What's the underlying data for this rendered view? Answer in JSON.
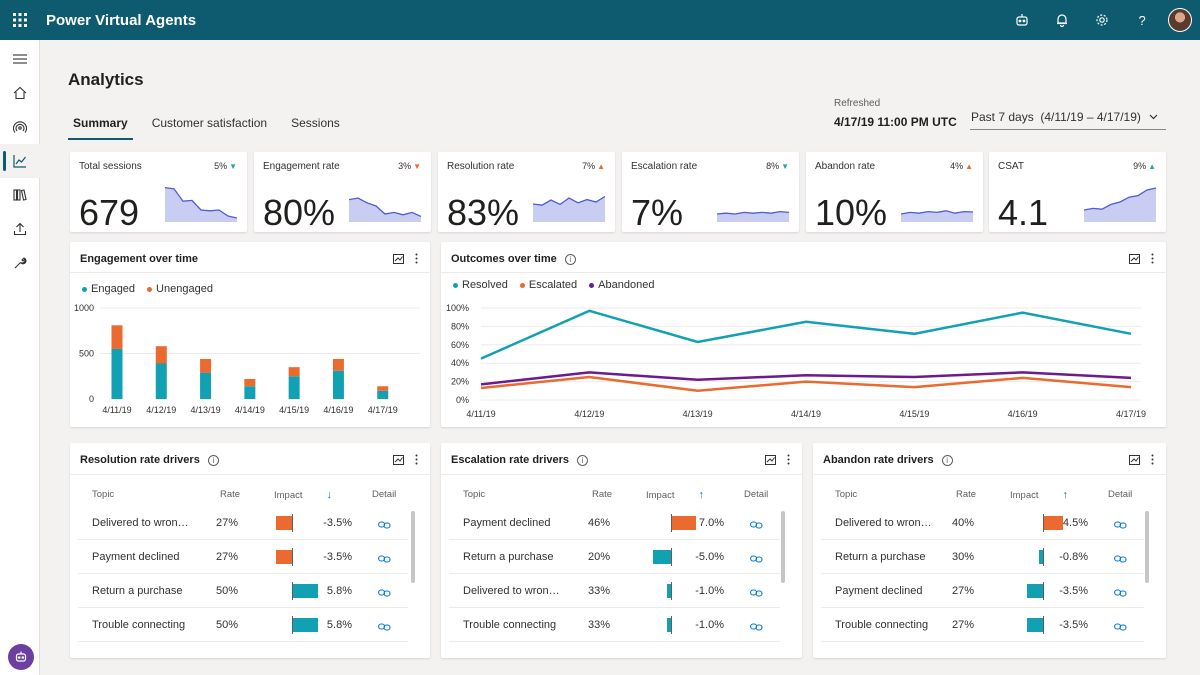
{
  "app": {
    "title": "Power Virtual Agents"
  },
  "page": {
    "title": "Analytics"
  },
  "tabs": [
    {
      "label": "Summary",
      "active": true
    },
    {
      "label": "Customer satisfaction"
    },
    {
      "label": "Sessions"
    }
  ],
  "refreshed": {
    "label": "Refreshed",
    "value": "4/17/19 11:00 PM UTC"
  },
  "date_range": {
    "label": "Past 7 days",
    "range": "(4/11/19 – 4/17/19)"
  },
  "colors": {
    "brand": "#0e5b6f",
    "teal": "#12a0b3",
    "orange": "#ea6a2f",
    "purple": "#6c1a8c",
    "spark": "#4f5bd5",
    "sparkFill": "#c9cdf2",
    "up": "#2aa5a0",
    "down_orange": "#ea6a2f"
  },
  "kpis": [
    {
      "label": "Total sessions",
      "delta": "5%",
      "dir": "down",
      "tri_color": "#2aa5a0",
      "value": "679",
      "spark": [
        0.86,
        0.83,
        0.52,
        0.54,
        0.3,
        0.28,
        0.3,
        0.15,
        0.1
      ]
    },
    {
      "label": "Engagement rate",
      "delta": "3%",
      "dir": "down",
      "tri_color": "#ea6a2f",
      "value": "80%",
      "spark": [
        0.56,
        0.6,
        0.48,
        0.4,
        0.2,
        0.24,
        0.18,
        0.24,
        0.14
      ]
    },
    {
      "label": "Resolution rate",
      "delta": "7%",
      "dir": "up",
      "tri_color": "#ea6a2f",
      "value": "83%",
      "spark": [
        0.45,
        0.42,
        0.55,
        0.44,
        0.6,
        0.48,
        0.56,
        0.5,
        0.64
      ]
    },
    {
      "label": "Escalation rate",
      "delta": "8%",
      "dir": "down",
      "tri_color": "#2aa5a0",
      "value": "7%",
      "spark": [
        0.2,
        0.22,
        0.2,
        0.24,
        0.22,
        0.24,
        0.22,
        0.26,
        0.24
      ]
    },
    {
      "label": "Abandon rate",
      "delta": "4%",
      "dir": "up",
      "tri_color": "#ea6a2f",
      "value": "10%",
      "spark": [
        0.2,
        0.24,
        0.22,
        0.26,
        0.24,
        0.28,
        0.22,
        0.26,
        0.25
      ]
    },
    {
      "label": "CSAT",
      "delta": "9%",
      "dir": "up",
      "tri_color": "#2aa5a0",
      "value": "4.1",
      "spark": [
        0.3,
        0.34,
        0.32,
        0.44,
        0.5,
        0.62,
        0.66,
        0.8,
        0.85
      ]
    }
  ],
  "engagement": {
    "title": "Engagement over time",
    "legend": [
      "Engaged",
      "Unengaged"
    ]
  },
  "outcomes": {
    "title": "Outcomes over time",
    "legend": [
      "Resolved",
      "Escalated",
      "Abandoned"
    ]
  },
  "chart_data": [
    {
      "type": "bar",
      "title": "Engagement over time",
      "categories": [
        "4/11/19",
        "4/12/19",
        "4/13/19",
        "4/14/19",
        "4/15/19",
        "4/16/19",
        "4/17/19"
      ],
      "series": [
        {
          "name": "Engaged",
          "values": [
            550,
            390,
            290,
            140,
            250,
            310,
            90
          ]
        },
        {
          "name": "Unengaged",
          "values": [
            260,
            190,
            150,
            80,
            100,
            130,
            50
          ]
        }
      ],
      "ylim": [
        0,
        1000
      ],
      "yticks": [
        "1000",
        "500",
        "0"
      ],
      "stacked": true,
      "legend": "top-left"
    },
    {
      "type": "line",
      "title": "Outcomes over time",
      "categories": [
        "4/11/19",
        "4/12/19",
        "4/13/19",
        "4/14/19",
        "4/15/19",
        "4/16/19",
        "4/17/19"
      ],
      "series": [
        {
          "name": "Resolved",
          "values": [
            45,
            97,
            63,
            85,
            72,
            95,
            72
          ]
        },
        {
          "name": "Escalated",
          "values": [
            13,
            25,
            10,
            20,
            14,
            24,
            14
          ]
        },
        {
          "name": "Abandoned",
          "values": [
            17,
            30,
            22,
            27,
            25,
            30,
            24
          ]
        }
      ],
      "ylim": [
        0,
        100
      ],
      "yticks": [
        "100%",
        "80%",
        "60%",
        "40%",
        "20%",
        "0%"
      ],
      "legend": "top-left"
    }
  ],
  "drivers_headers": {
    "topic": "Topic",
    "rate": "Rate",
    "impact": "Impact",
    "detail": "Detail"
  },
  "drivers": [
    {
      "title": "Resolution rate drivers",
      "sort": "↓",
      "rows": [
        {
          "topic": "Delivered to wron…",
          "rate": "27%",
          "impact": -3.5,
          "impact_text": "-3.5%"
        },
        {
          "topic": "Payment declined",
          "rate": "27%",
          "impact": -3.5,
          "impact_text": "-3.5%"
        },
        {
          "topic": "Return a purchase",
          "rate": "50%",
          "impact": 5.8,
          "impact_text": "5.8%"
        },
        {
          "topic": "Trouble connecting",
          "rate": "50%",
          "impact": 5.8,
          "impact_text": "5.8%"
        }
      ]
    },
    {
      "title": "Escalation rate drivers",
      "sort": "↑",
      "rows": [
        {
          "topic": "Payment declined",
          "rate": "46%",
          "impact": 7.0,
          "impact_text": "7.0%"
        },
        {
          "topic": "Return a purchase",
          "rate": "20%",
          "impact": -5.0,
          "impact_text": "-5.0%"
        },
        {
          "topic": "Delivered to wron…",
          "rate": "33%",
          "impact": -1.0,
          "impact_text": "-1.0%"
        },
        {
          "topic": "Trouble connecting",
          "rate": "33%",
          "impact": -1.0,
          "impact_text": "-1.0%"
        }
      ]
    },
    {
      "title": "Abandon rate drivers",
      "sort": "↑",
      "rows": [
        {
          "topic": "Delivered to wron…",
          "rate": "40%",
          "impact": 4.5,
          "impact_text": "4.5%"
        },
        {
          "topic": "Return a purchase",
          "rate": "30%",
          "impact": -0.8,
          "impact_text": "-0.8%"
        },
        {
          "topic": "Payment declined",
          "rate": "27%",
          "impact": -3.5,
          "impact_text": "-3.5%"
        },
        {
          "topic": "Trouble connecting",
          "rate": "27%",
          "impact": -3.5,
          "impact_text": "-3.5%"
        }
      ]
    }
  ],
  "icons": {
    "waffle": "app-launcher-icon",
    "bot": "bot-icon",
    "bell": "bell-icon",
    "gear": "gear-icon",
    "help": "help-icon"
  }
}
